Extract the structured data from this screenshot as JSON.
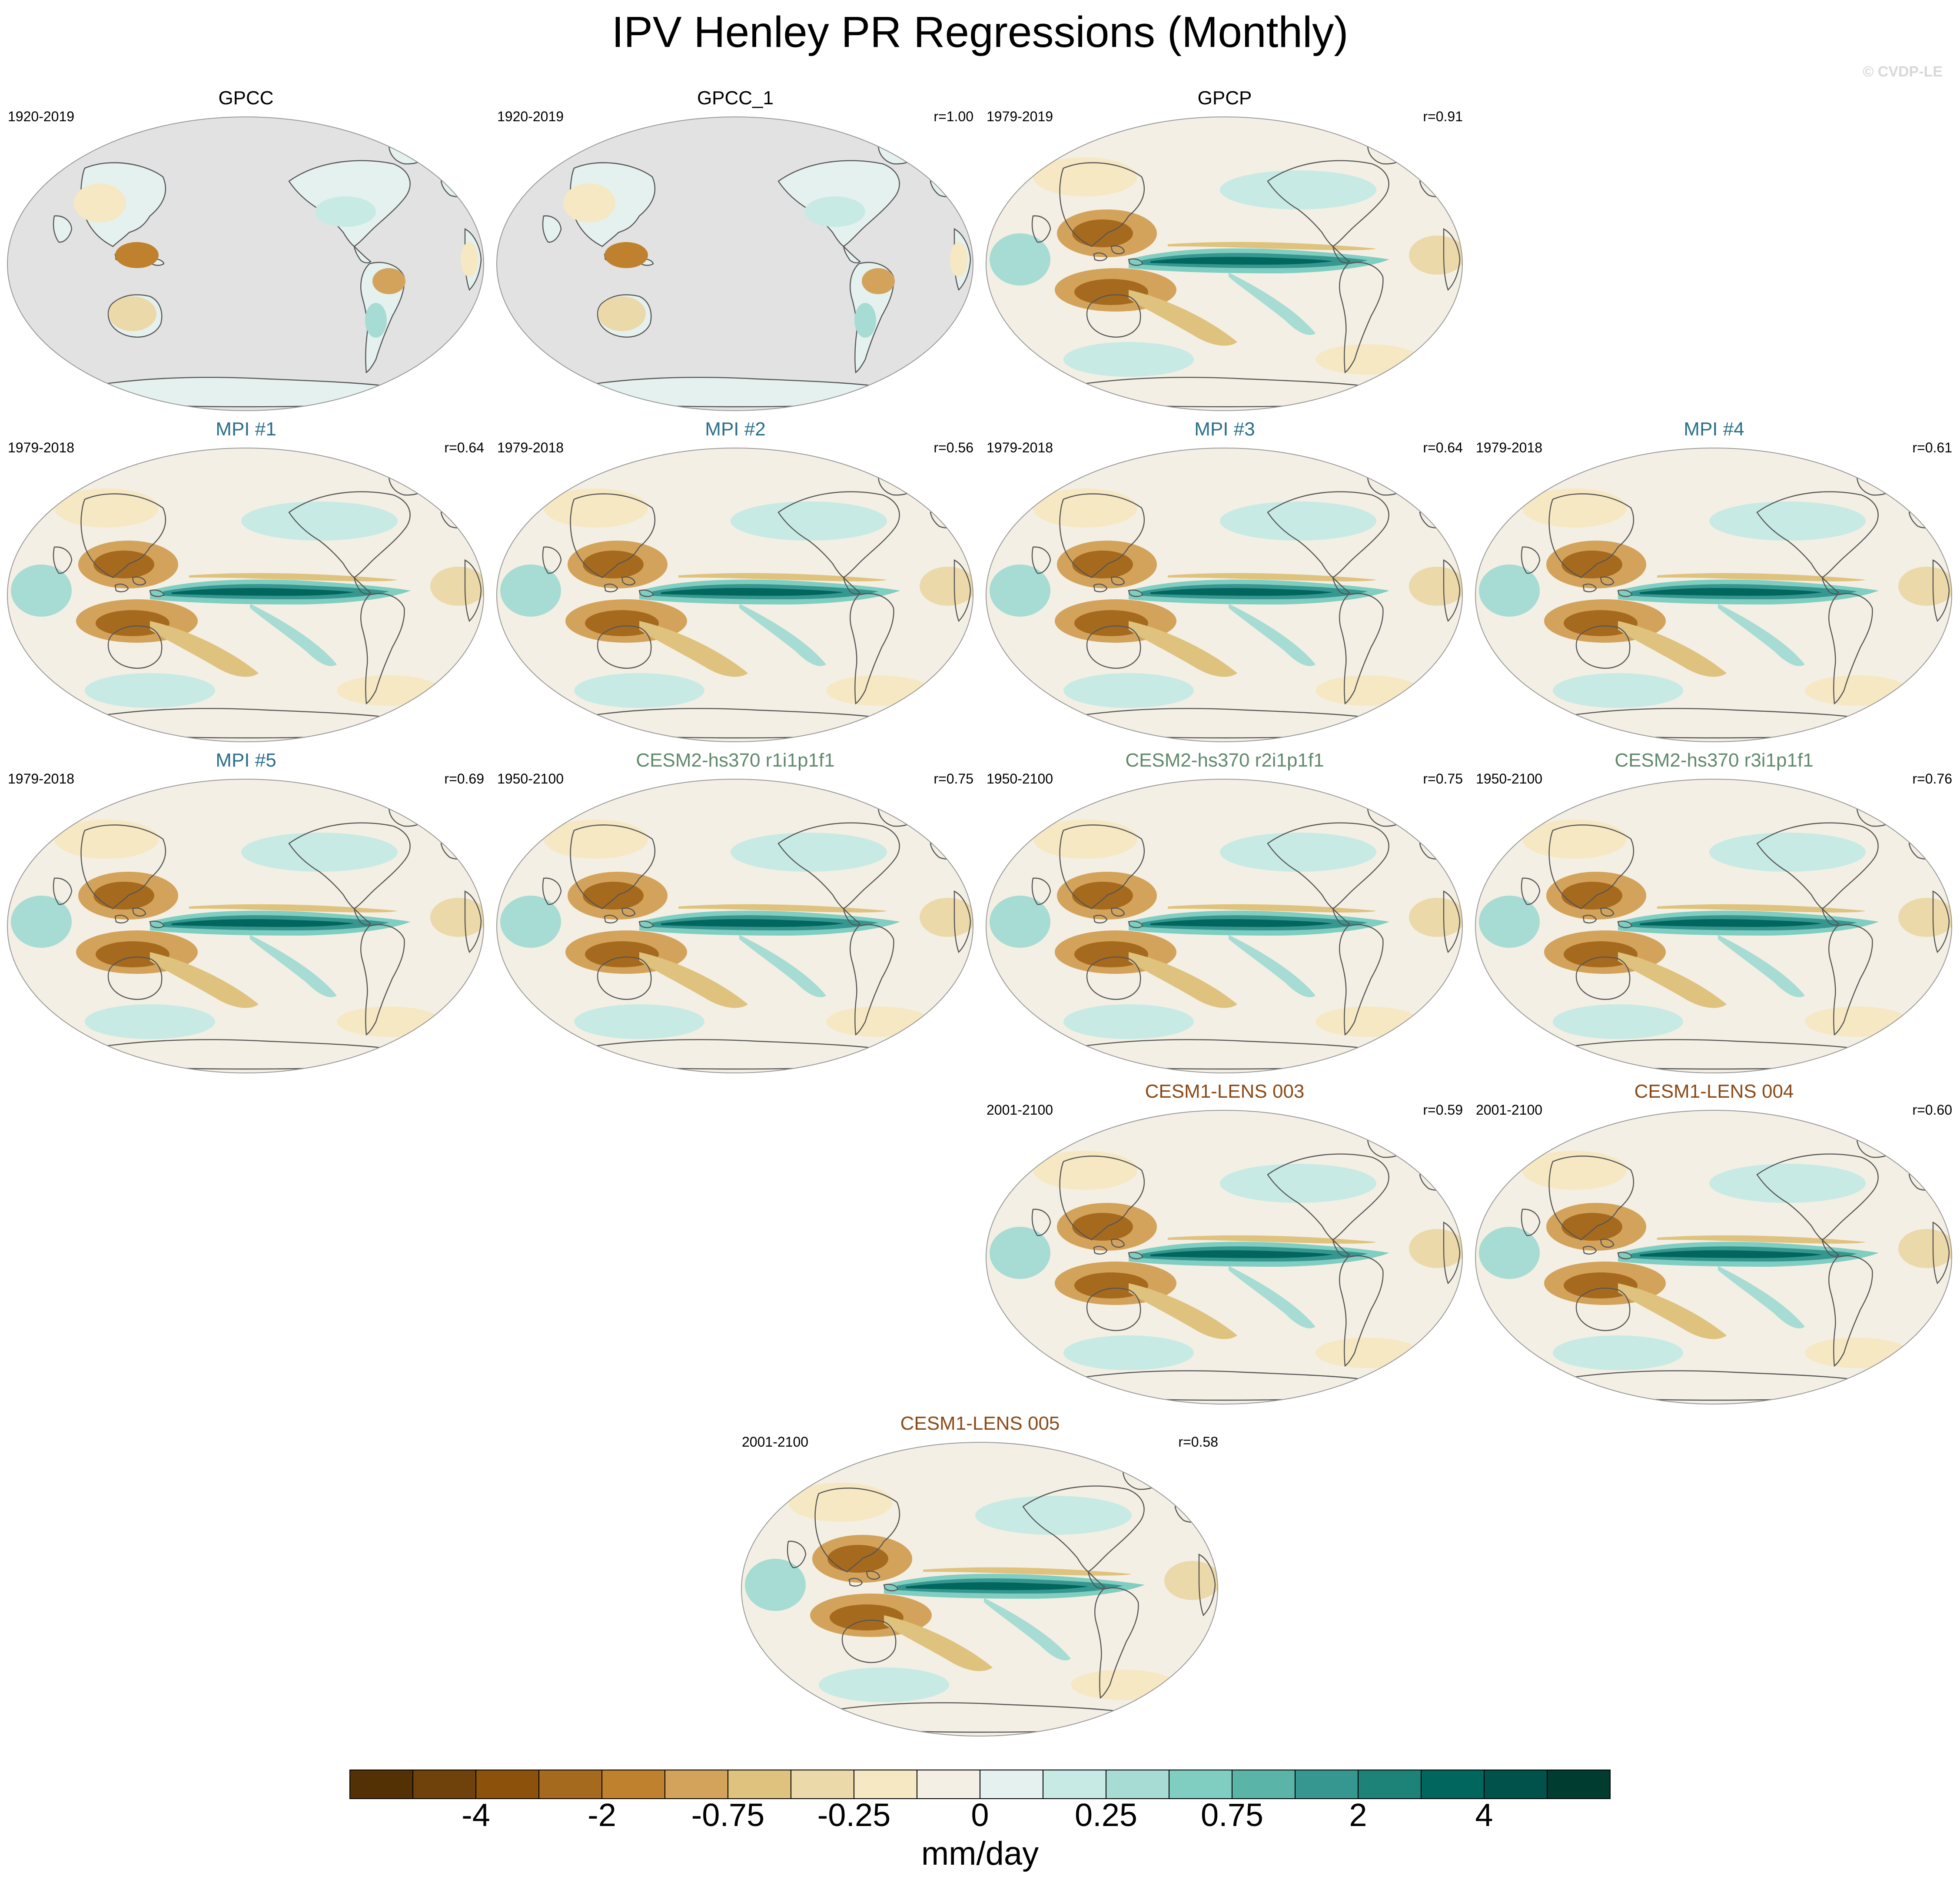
{
  "title": "IPV Henley PR Regressions (Monthly)",
  "credit": "© CVDP-LE",
  "colors": {
    "obs_title": "#000000",
    "mpi_title": "#2a6f8a",
    "cesm2_title": "#5f8a6a",
    "cesm1_title": "#8a4a17",
    "missing_land": "#e2e2e2"
  },
  "panels": [
    {
      "id": "gpcc",
      "title": "GPCC",
      "group": "obs",
      "period": "1920-2019",
      "r": "",
      "pattern": "land"
    },
    {
      "id": "gpcc-1",
      "title": "GPCC_1",
      "group": "obs",
      "period": "1920-2019",
      "r": "r=1.00",
      "pattern": "land"
    },
    {
      "id": "gpcp",
      "title": "GPCP",
      "group": "obs",
      "period": "1979-2019",
      "r": "r=0.91",
      "pattern": "enso"
    },
    {
      "id": "mpi-1",
      "title": "MPI #1",
      "group": "mpi",
      "period": "1979-2018",
      "r": "r=0.64",
      "pattern": "enso"
    },
    {
      "id": "mpi-2",
      "title": "MPI #2",
      "group": "mpi",
      "period": "1979-2018",
      "r": "r=0.56",
      "pattern": "enso"
    },
    {
      "id": "mpi-3",
      "title": "MPI #3",
      "group": "mpi",
      "period": "1979-2018",
      "r": "r=0.64",
      "pattern": "enso"
    },
    {
      "id": "mpi-4",
      "title": "MPI #4",
      "group": "mpi",
      "period": "1979-2018",
      "r": "r=0.61",
      "pattern": "enso"
    },
    {
      "id": "mpi-5",
      "title": "MPI #5",
      "group": "mpi",
      "period": "1979-2018",
      "r": "r=0.69",
      "pattern": "enso"
    },
    {
      "id": "cesm2-r1",
      "title": "CESM2-hs370 r1i1p1f1",
      "group": "cesm2",
      "period": "1950-2100",
      "r": "r=0.75",
      "pattern": "enso"
    },
    {
      "id": "cesm2-r2",
      "title": "CESM2-hs370 r2i1p1f1",
      "group": "cesm2",
      "period": "1950-2100",
      "r": "r=0.75",
      "pattern": "enso"
    },
    {
      "id": "cesm2-r3",
      "title": "CESM2-hs370 r3i1p1f1",
      "group": "cesm2",
      "period": "1950-2100",
      "r": "r=0.76",
      "pattern": "enso"
    },
    {
      "id": "cesm1-003",
      "title": "CESM1-LENS 003",
      "group": "cesm1",
      "period": "2001-2100",
      "r": "r=0.59",
      "pattern": "enso"
    },
    {
      "id": "cesm1-004",
      "title": "CESM1-LENS 004",
      "group": "cesm1",
      "period": "2001-2100",
      "r": "r=0.60",
      "pattern": "enso"
    },
    {
      "id": "cesm1-005",
      "title": "CESM1-LENS 005",
      "group": "cesm1",
      "period": "2001-2100",
      "r": "r=0.58",
      "pattern": "enso"
    }
  ],
  "colorbar": {
    "colors": [
      "#543005",
      "#6f420c",
      "#8c510a",
      "#a66a1e",
      "#bf812d",
      "#d3a35b",
      "#dfc27d",
      "#ecd9a9",
      "#f6e8c3",
      "#f3efe4",
      "#e4f1ef",
      "#c7eae5",
      "#a6dcd3",
      "#80cdc1",
      "#5ab4a8",
      "#35978f",
      "#1d8378",
      "#01665e",
      "#00524a",
      "#003c30"
    ],
    "labels": [
      "-4",
      "-2",
      "-0.75",
      "-0.25",
      "0",
      "0.25",
      "0.75",
      "2",
      "4"
    ],
    "units": "mm/day"
  }
}
